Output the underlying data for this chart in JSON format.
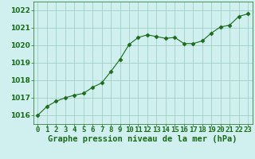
{
  "x": [
    0,
    1,
    2,
    3,
    4,
    5,
    6,
    7,
    8,
    9,
    10,
    11,
    12,
    13,
    14,
    15,
    16,
    17,
    18,
    19,
    20,
    21,
    22,
    23
  ],
  "y": [
    1016.0,
    1016.5,
    1016.8,
    1017.0,
    1017.15,
    1017.25,
    1017.6,
    1017.85,
    1018.5,
    1019.2,
    1020.05,
    1020.45,
    1020.6,
    1020.5,
    1020.4,
    1020.45,
    1020.1,
    1020.1,
    1020.25,
    1020.7,
    1021.05,
    1021.15,
    1021.65,
    1021.8
  ],
  "ylim": [
    1015.5,
    1022.5
  ],
  "xlim": [
    -0.5,
    23.5
  ],
  "yticks": [
    1016,
    1017,
    1018,
    1019,
    1020,
    1021,
    1022
  ],
  "xticks": [
    0,
    1,
    2,
    3,
    4,
    5,
    6,
    7,
    8,
    9,
    10,
    11,
    12,
    13,
    14,
    15,
    16,
    17,
    18,
    19,
    20,
    21,
    22,
    23
  ],
  "line_color": "#1a6b1a",
  "marker": "D",
  "marker_size": 2.5,
  "bg_color": "#cff0ee",
  "grid_color": "#99ccbb",
  "xlabel": "Graphe pression niveau de la mer (hPa)",
  "tick_label_fontsize": 6.5,
  "xlabel_fontsize": 7.5
}
